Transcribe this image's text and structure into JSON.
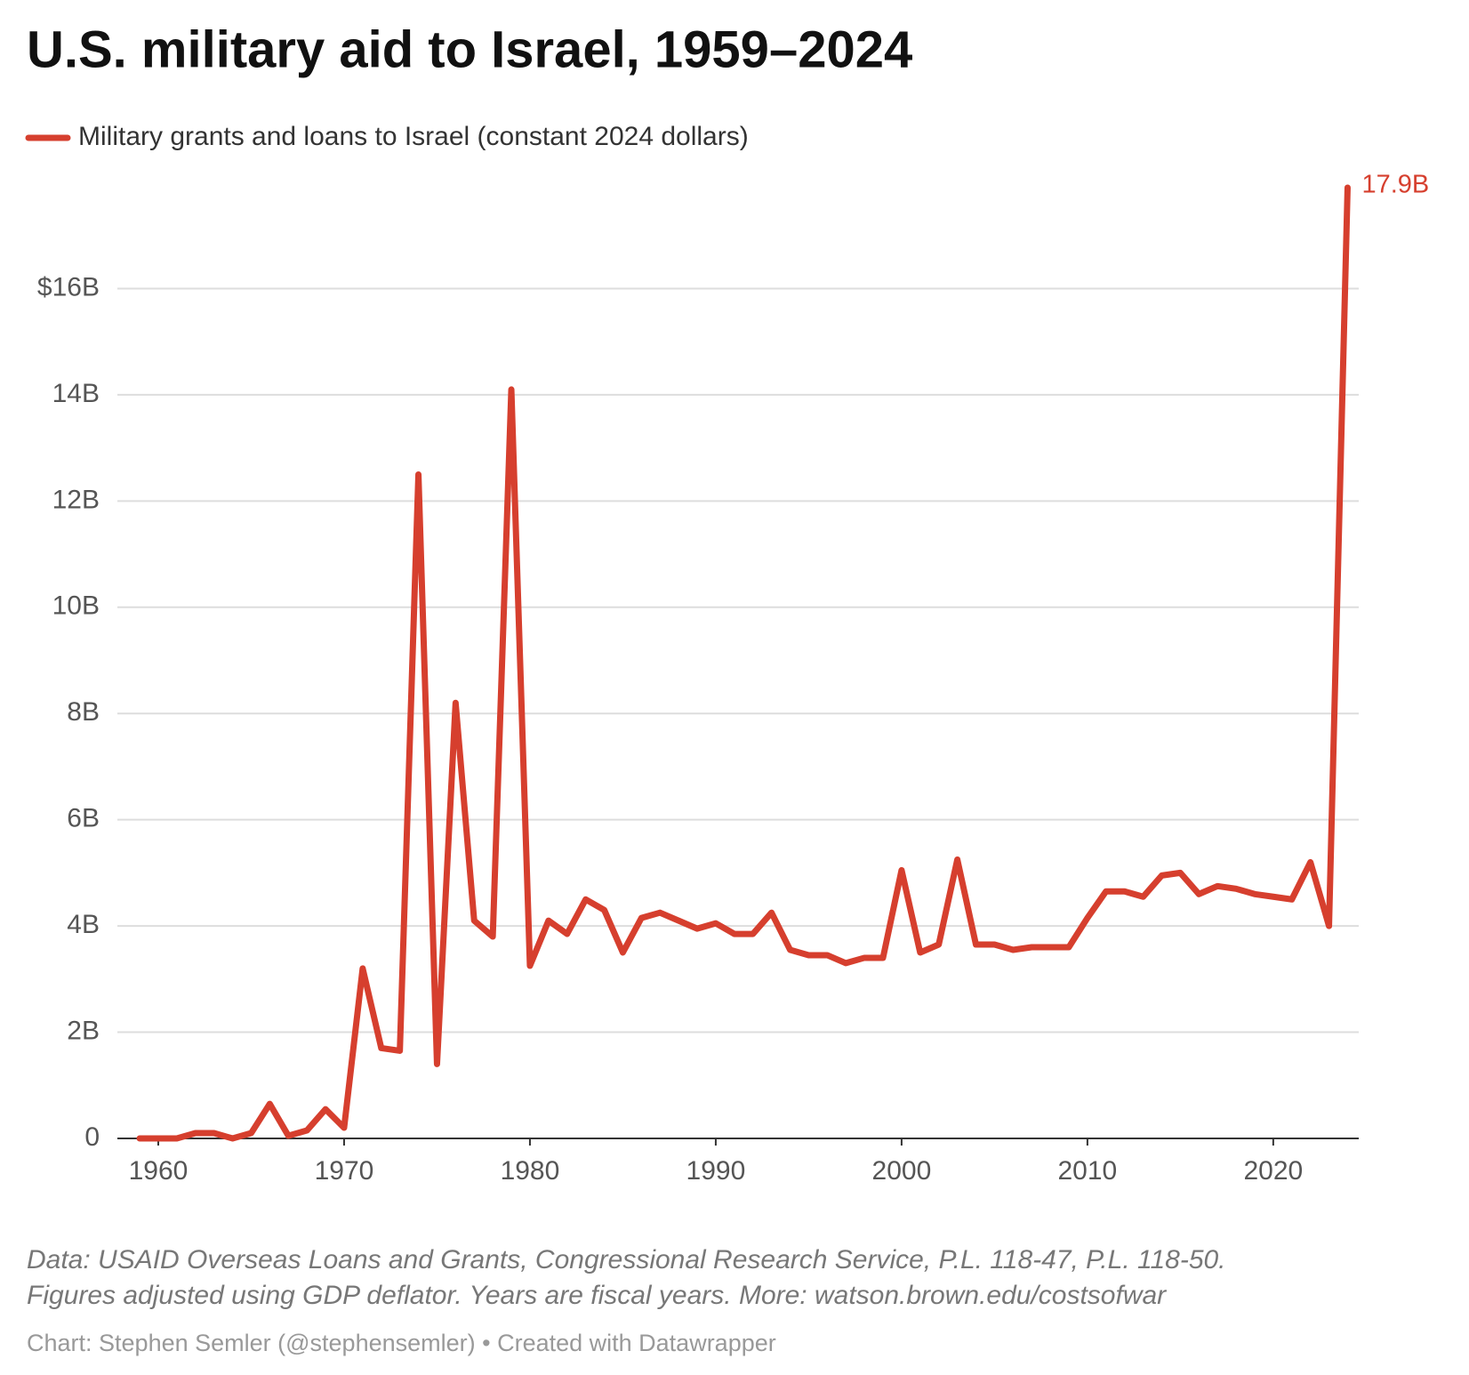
{
  "chart_data": {
    "type": "line",
    "title": "U.S. military aid to Israel, 1959–2024",
    "x": [
      1959,
      1960,
      1961,
      1962,
      1963,
      1964,
      1965,
      1966,
      1967,
      1968,
      1969,
      1970,
      1971,
      1972,
      1973,
      1974,
      1975,
      1976,
      1977,
      1978,
      1979,
      1980,
      1981,
      1982,
      1983,
      1984,
      1985,
      1986,
      1987,
      1988,
      1989,
      1990,
      1991,
      1992,
      1993,
      1994,
      1995,
      1996,
      1997,
      1998,
      1999,
      2000,
      2001,
      2002,
      2003,
      2004,
      2005,
      2006,
      2007,
      2008,
      2009,
      2010,
      2011,
      2012,
      2013,
      2014,
      2015,
      2016,
      2017,
      2018,
      2019,
      2020,
      2021,
      2022,
      2023,
      2024
    ],
    "series": [
      {
        "name": "Military grants and loans to Israel (constant 2024 dollars)",
        "color": "#d63f2e",
        "values": [
          0,
          0,
          0,
          0.1,
          0.1,
          0,
          0.1,
          0.65,
          0.05,
          0.15,
          0.55,
          0.2,
          3.2,
          1.7,
          1.65,
          12.5,
          1.4,
          8.2,
          4.1,
          3.8,
          14.1,
          3.25,
          4.1,
          3.85,
          4.5,
          4.3,
          3.5,
          4.15,
          4.25,
          4.1,
          3.95,
          4.05,
          3.85,
          3.85,
          4.25,
          3.55,
          3.45,
          3.45,
          3.3,
          3.4,
          3.4,
          5.05,
          3.5,
          3.65,
          5.25,
          3.65,
          3.65,
          3.55,
          3.6,
          3.6,
          3.6,
          4.15,
          4.65,
          4.65,
          4.55,
          4.95,
          5.0,
          4.6,
          4.75,
          4.7,
          4.6,
          4.55,
          4.5,
          5.2,
          4.0,
          17.9
        ],
        "value_labels": [
          null,
          null,
          null,
          null,
          null,
          null,
          null,
          null,
          null,
          null,
          null,
          null,
          null,
          null,
          null,
          null,
          null,
          null,
          null,
          null,
          null,
          null,
          null,
          null,
          null,
          null,
          null,
          null,
          null,
          null,
          null,
          null,
          null,
          null,
          null,
          null,
          null,
          null,
          null,
          null,
          null,
          null,
          null,
          null,
          null,
          null,
          null,
          null,
          null,
          null,
          null,
          null,
          null,
          null,
          null,
          null,
          null,
          null,
          null,
          null,
          null,
          null,
          null,
          null,
          null,
          "17.9B"
        ]
      }
    ],
    "xlim": [
      1957.8,
      2024.6
    ],
    "xticks": [
      1960,
      1970,
      1980,
      1990,
      2000,
      2010,
      2020
    ],
    "ylim": [
      0,
      18
    ],
    "yticks": [
      0,
      {
        "value": 2,
        "label": "2B"
      },
      {
        "value": 4,
        "label": "4B"
      },
      {
        "value": 6,
        "label": "6B"
      },
      {
        "value": 8,
        "label": "8B"
      },
      {
        "value": 10,
        "label": "10B"
      },
      {
        "value": 12,
        "label": "12B"
      },
      {
        "value": 14,
        "label": "14B"
      },
      {
        "value": 16,
        "label": "$16B"
      }
    ],
    "grid": true,
    "notes": [
      "Data: USAID Overseas Loans and Grants, Congressional Research Service, P.L. 118-47, P.L. 118-50.",
      "Figures adjusted using GDP deflator. Years are fiscal years. More: watson.brown.edu/costsofwar"
    ],
    "credit": "Chart: Stephen Semler (@stephensemler) • Created with Datawrapper"
  }
}
